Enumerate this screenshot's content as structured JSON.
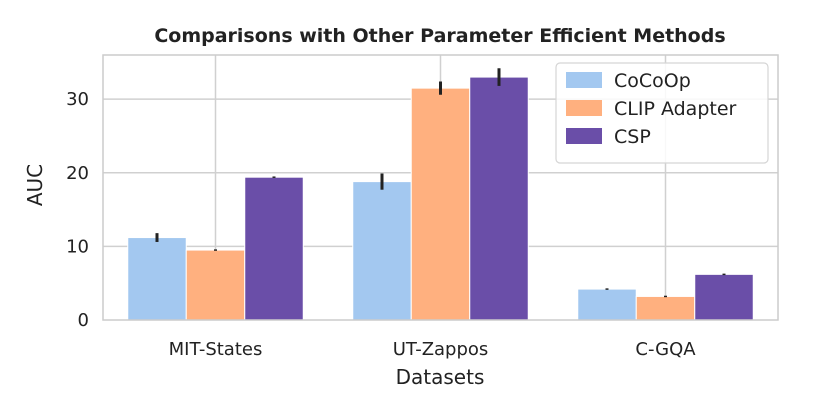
{
  "chart_data": {
    "type": "bar",
    "title": "Comparisons with Other Parameter Efficient Methods",
    "xlabel": "Datasets",
    "ylabel": "AUC",
    "categories": [
      "MIT-States",
      "UT-Zappos",
      "C-GQA"
    ],
    "ylim": [
      0,
      36
    ],
    "yticks": [
      0,
      10,
      20,
      30
    ],
    "grid": true,
    "legend_position": "top-right",
    "series": [
      {
        "name": "CoCoOp",
        "color": "#a3c8f0",
        "values": [
          11.2,
          18.8,
          4.2
        ],
        "errors": [
          0.6,
          1.1,
          0.1
        ]
      },
      {
        "name": "CLIP Adapter",
        "color": "#ffb07f",
        "values": [
          9.5,
          31.5,
          3.2
        ],
        "errors": [
          0.1,
          0.9,
          0.1
        ]
      },
      {
        "name": "CSP",
        "color": "#6a4ea8",
        "values": [
          19.4,
          33.0,
          6.2
        ],
        "errors": [
          0.1,
          1.2,
          0.1
        ]
      }
    ]
  }
}
